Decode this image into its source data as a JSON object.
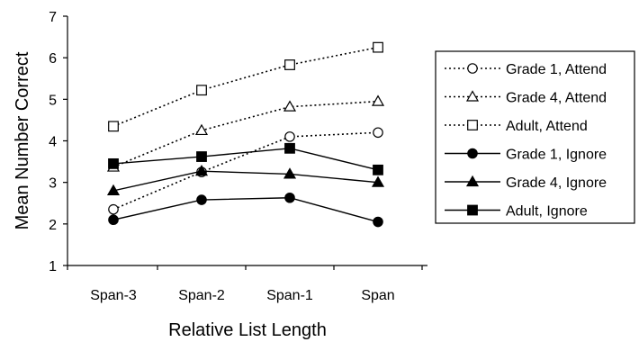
{
  "chart_data": {
    "type": "line",
    "title": "",
    "xlabel": "Relative List Length",
    "ylabel": "Mean Number Correct",
    "categories": [
      "Span-3",
      "Span-2",
      "Span-1",
      "Span"
    ],
    "ylim": [
      1,
      7
    ],
    "yticks": [
      1,
      2,
      3,
      4,
      5,
      6,
      7
    ],
    "grid": false,
    "legend_position": "right",
    "series": [
      {
        "name": "Grade 1, Attend",
        "values": [
          2.35,
          3.25,
          4.1,
          4.2
        ],
        "marker": "circle-open",
        "line": "dotted",
        "color": "#000000"
      },
      {
        "name": "Grade 4, Attend",
        "values": [
          3.37,
          4.25,
          4.82,
          4.95
        ],
        "marker": "triangle-open",
        "line": "dotted",
        "color": "#000000"
      },
      {
        "name": "Adult, Attend",
        "values": [
          4.35,
          5.22,
          5.83,
          6.25
        ],
        "marker": "square-open",
        "line": "dotted",
        "color": "#000000"
      },
      {
        "name": "Grade 1, Ignore",
        "values": [
          2.1,
          2.58,
          2.63,
          2.05
        ],
        "marker": "circle-filled",
        "line": "solid",
        "color": "#000000"
      },
      {
        "name": "Grade 4, Ignore",
        "values": [
          2.8,
          3.27,
          3.2,
          3.0
        ],
        "marker": "triangle-filled",
        "line": "solid",
        "color": "#000000"
      },
      {
        "name": "Adult, Ignore",
        "values": [
          3.45,
          3.62,
          3.82,
          3.3
        ],
        "marker": "square-filled",
        "line": "solid",
        "color": "#000000"
      }
    ]
  }
}
